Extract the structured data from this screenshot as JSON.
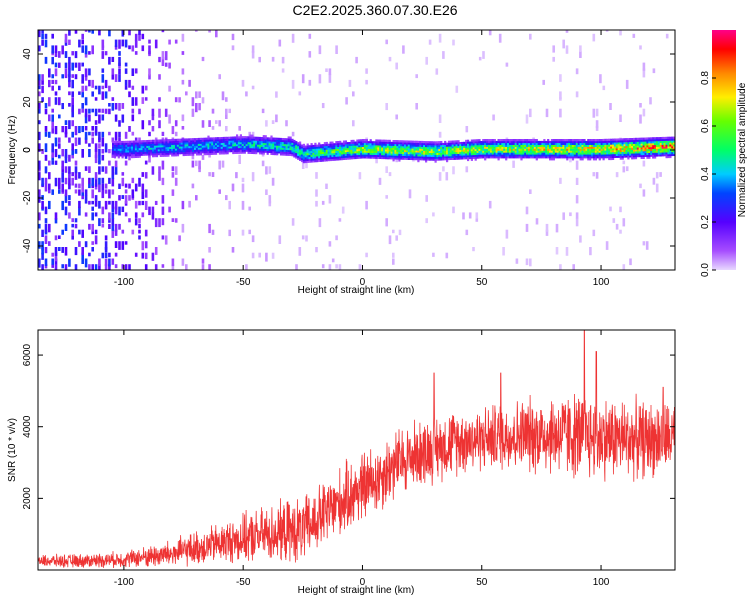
{
  "title": "C2E2.2025.360.07.30.E26",
  "chart_data": [
    {
      "type": "heatmap",
      "xlabel": "Height of straight line (km)",
      "ylabel": "Frequency (Hz)",
      "xlim": [
        -136,
        131
      ],
      "ylim": [
        -50,
        50
      ],
      "x_ticks": [
        -100,
        -50,
        0,
        50,
        100
      ],
      "y_ticks": [
        -40,
        -20,
        0,
        20,
        40
      ],
      "grid": false,
      "colorbar": {
        "label": "Normalized spectral amplitude",
        "range": [
          0,
          1
        ],
        "ticks": [
          "0.0",
          "0.2",
          "0.4",
          "0.6",
          "0.8"
        ],
        "colormap": "rainbow (purple-blue-cyan-green-yellow-red-magenta)"
      },
      "description_points": [
        {
          "x": -130,
          "noise_level": 0.25
        },
        {
          "x": -100,
          "noise_level": 0.2
        },
        {
          "x": -80,
          "noise_level": 0.08
        },
        {
          "x": -50,
          "noise_level": 0.03
        },
        {
          "x": 0,
          "noise_level": 0.02
        },
        {
          "x": 130,
          "noise_level": 0.02
        }
      ],
      "band_center_hz": [
        {
          "x": -100,
          "f": 0
        },
        {
          "x": -50,
          "f": 2
        },
        {
          "x": -30,
          "f": 1
        },
        {
          "x": -25,
          "f": -2
        },
        {
          "x": 0,
          "f": 0
        },
        {
          "x": 30,
          "f": -1
        },
        {
          "x": 50,
          "f": 0
        },
        {
          "x": 100,
          "f": 0
        },
        {
          "x": 130,
          "f": 1
        }
      ],
      "band_amplitude": [
        {
          "x": -136,
          "a": 0.2
        },
        {
          "x": -100,
          "a": 0.35
        },
        {
          "x": -50,
          "a": 0.4
        },
        {
          "x": -20,
          "a": 0.5
        },
        {
          "x": 0,
          "a": 0.6
        },
        {
          "x": 50,
          "a": 0.6
        },
        {
          "x": 100,
          "a": 0.7
        },
        {
          "x": 131,
          "a": 0.8
        }
      ],
      "colors": {
        "signal": "#ff3333"
      }
    },
    {
      "type": "line",
      "xlabel": "Height of straight line (km)",
      "ylabel": "SNR (10 * v/v)",
      "xlim": [
        -136,
        131
      ],
      "ylim": [
        0,
        6700
      ],
      "x_ticks": [
        -100,
        -50,
        0,
        50,
        100
      ],
      "y_ticks": [
        2000,
        4000,
        6000
      ],
      "grid": false,
      "color": "#ee3333",
      "trend": [
        {
          "x": -136,
          "y": 250
        },
        {
          "x": -120,
          "y": 250
        },
        {
          "x": -100,
          "y": 300
        },
        {
          "x": -80,
          "y": 450
        },
        {
          "x": -60,
          "y": 750
        },
        {
          "x": -40,
          "y": 1000
        },
        {
          "x": -25,
          "y": 1100
        },
        {
          "x": -15,
          "y": 1600
        },
        {
          "x": -5,
          "y": 2100
        },
        {
          "x": 5,
          "y": 2500
        },
        {
          "x": 15,
          "y": 3000
        },
        {
          "x": 25,
          "y": 3300
        },
        {
          "x": 40,
          "y": 3600
        },
        {
          "x": 60,
          "y": 3750
        },
        {
          "x": 80,
          "y": 3800
        },
        {
          "x": 100,
          "y": 3700
        },
        {
          "x": 120,
          "y": 3650
        },
        {
          "x": 131,
          "y": 3700
        }
      ],
      "noise_amplitude": [
        {
          "x": -136,
          "a": 150
        },
        {
          "x": -100,
          "a": 200
        },
        {
          "x": -60,
          "a": 500
        },
        {
          "x": -30,
          "a": 800
        },
        {
          "x": 0,
          "a": 900
        },
        {
          "x": 50,
          "a": 800
        },
        {
          "x": 90,
          "a": 1100
        },
        {
          "x": 131,
          "a": 900
        }
      ],
      "peaks": [
        {
          "x": 93,
          "y": 6700
        },
        {
          "x": 98,
          "y": 6100
        },
        {
          "x": 30,
          "y": 5500
        },
        {
          "x": 58,
          "y": 5500
        },
        {
          "x": 126,
          "y": 5100
        }
      ]
    }
  ]
}
